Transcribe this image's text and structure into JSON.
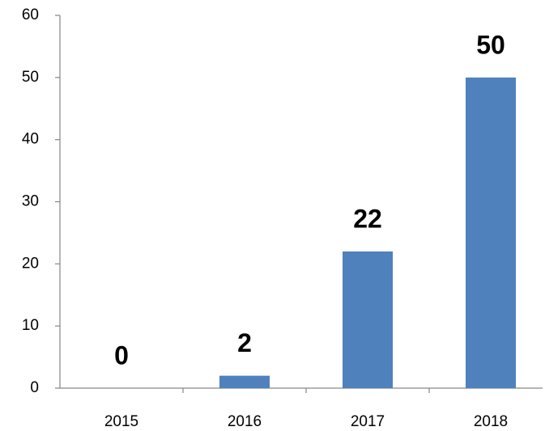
{
  "chart_data": {
    "type": "bar",
    "categories": [
      "2015",
      "2016",
      "2017",
      "2018"
    ],
    "values": [
      0,
      2,
      22,
      50
    ],
    "color": "#4f81bd",
    "ylim": [
      0,
      60
    ],
    "yticks": [
      0,
      10,
      20,
      30,
      40,
      50,
      60
    ],
    "grid": false
  }
}
